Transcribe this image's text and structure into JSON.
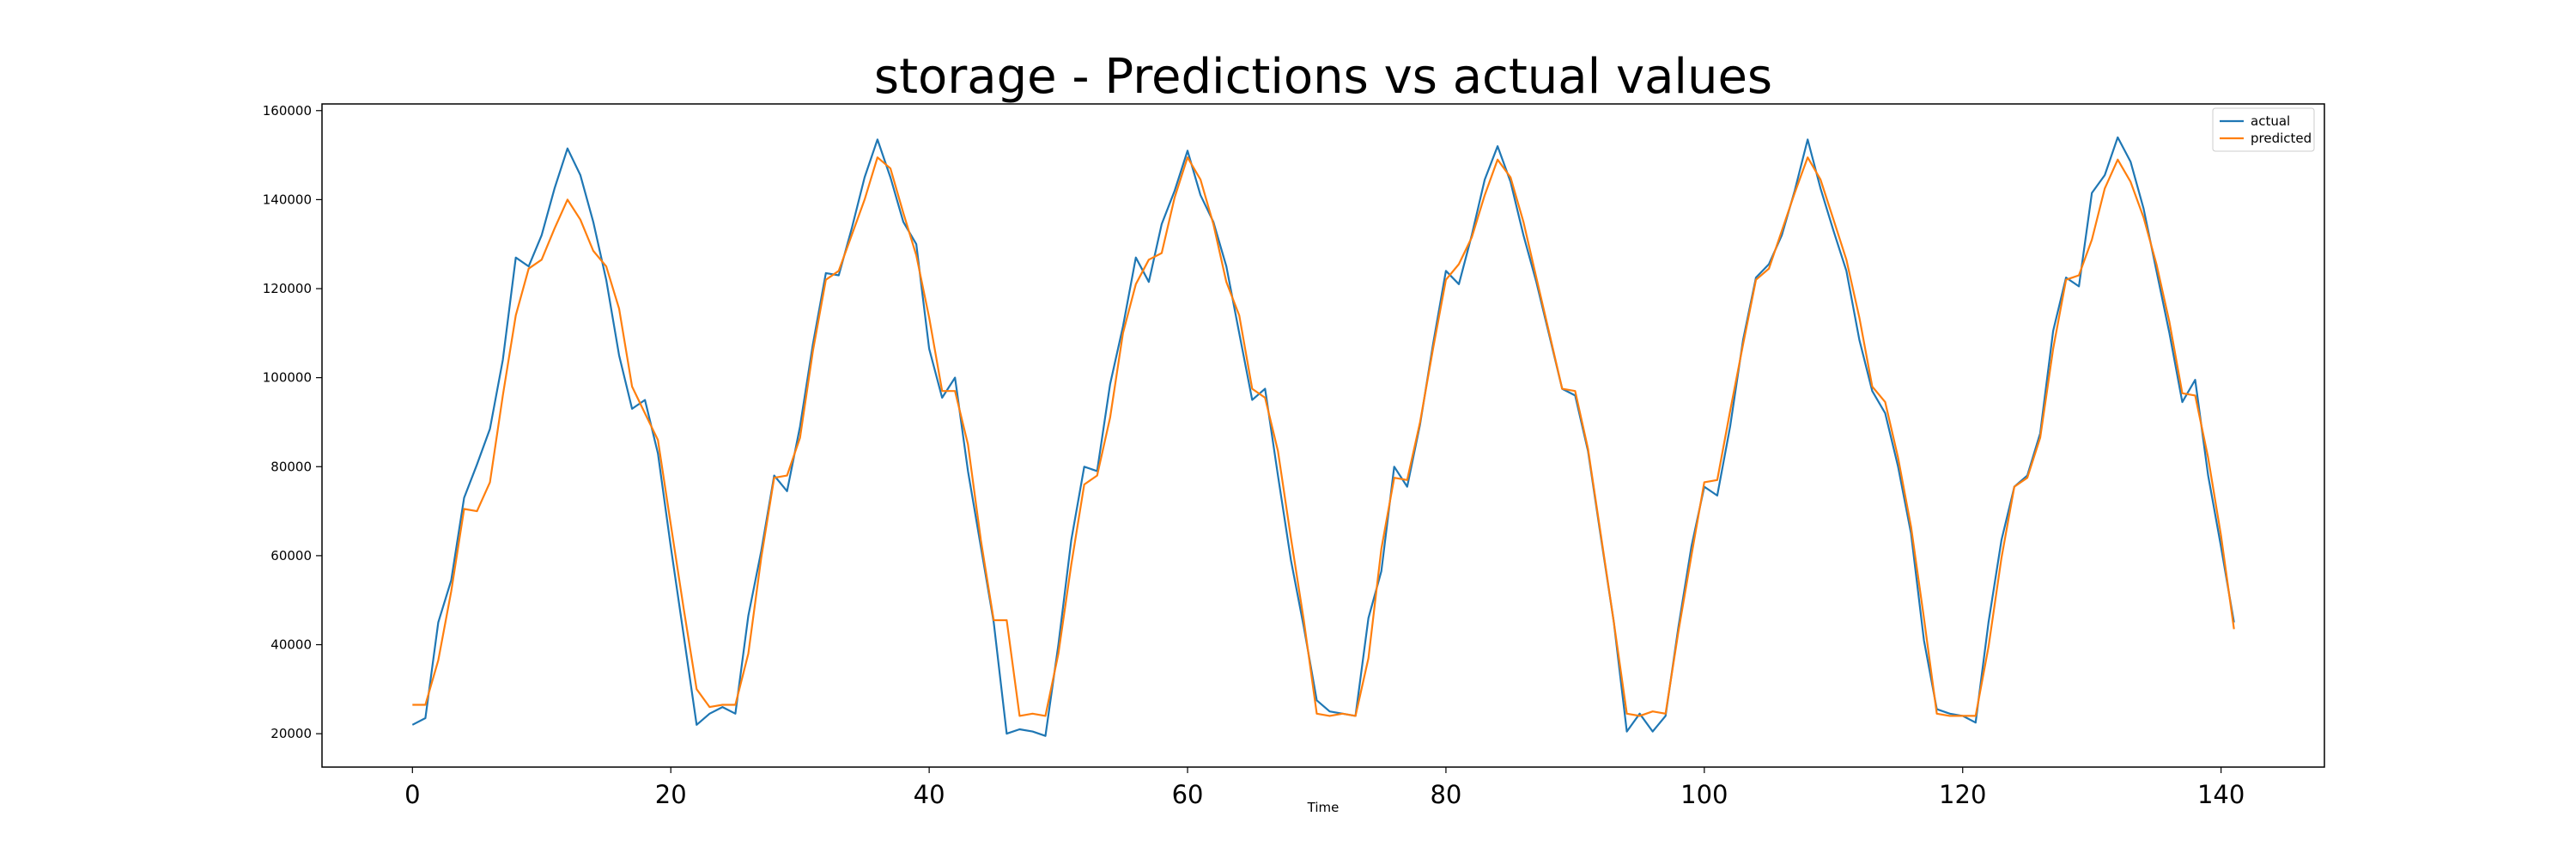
{
  "chart_data": {
    "type": "line",
    "title": "storage - Predictions vs actual values",
    "xlabel": "Time",
    "ylabel": "",
    "xlim": [
      -7,
      148
    ],
    "ylim": [
      12500,
      161500
    ],
    "xticks": [
      0,
      20,
      40,
      60,
      80,
      100,
      120,
      140
    ],
    "yticks": [
      20000,
      40000,
      60000,
      80000,
      100000,
      120000,
      140000,
      160000
    ],
    "grid": false,
    "legend_position": "top-right",
    "series": [
      {
        "name": "actual",
        "color": "#1f77b4",
        "x_start": 0,
        "values": [
          22000,
          23500,
          45000,
          54500,
          73000,
          80500,
          88500,
          104000,
          127000,
          125000,
          132000,
          142500,
          151500,
          145500,
          135000,
          122000,
          105000,
          93000,
          95000,
          83000,
          62000,
          42000,
          22000,
          24500,
          26000,
          24500,
          46500,
          61000,
          78000,
          74500,
          89000,
          107500,
          123500,
          123000,
          133500,
          145000,
          153500,
          145000,
          135000,
          130000,
          106500,
          95500,
          100000,
          79000,
          62000,
          45000,
          20000,
          21000,
          20500,
          19500,
          40000,
          63500,
          80000,
          79000,
          98500,
          111500,
          127000,
          121500,
          134500,
          142000,
          151000,
          141000,
          135000,
          125000,
          110000,
          95000,
          97500,
          78000,
          59000,
          44000,
          27500,
          25000,
          24500,
          24000,
          46000,
          56500,
          80000,
          75500,
          89500,
          107500,
          124000,
          121000,
          132000,
          144500,
          152000,
          144000,
          132000,
          121500,
          109500,
          97500,
          96000,
          83500,
          64000,
          45000,
          20500,
          24500,
          20500,
          24000,
          44000,
          62000,
          75500,
          73500,
          89000,
          108500,
          122500,
          125500,
          132000,
          142000,
          153500,
          142500,
          133000,
          124000,
          108500,
          97000,
          92000,
          80000,
          65000,
          41000,
          25500,
          24500,
          24000,
          22500,
          45000,
          63500,
          75500,
          78000,
          87500,
          110500,
          122500,
          120500,
          141500,
          145500,
          154000,
          148500,
          138000,
          124000,
          110000,
          94500,
          99500,
          78000,
          62000,
          45000
        ]
      },
      {
        "name": "predicted",
        "color": "#ff7f0e",
        "x_start": 0,
        "values": [
          26500,
          26500,
          36500,
          52000,
          70500,
          70000,
          76500,
          96000,
          114000,
          124500,
          126500,
          133500,
          140000,
          135500,
          128500,
          125000,
          115500,
          98000,
          92000,
          86000,
          67000,
          48000,
          30000,
          26000,
          26500,
          26500,
          38000,
          59500,
          77500,
          78000,
          86500,
          106000,
          122000,
          124000,
          132000,
          140000,
          149500,
          147000,
          137000,
          127500,
          113500,
          97000,
          97000,
          85000,
          63500,
          45500,
          45500,
          24000,
          24500,
          24000,
          38000,
          58000,
          76000,
          78000,
          91000,
          110000,
          121000,
          126500,
          128000,
          140500,
          149500,
          144500,
          134500,
          121500,
          114000,
          97500,
          95500,
          83500,
          64000,
          45500,
          24500,
          24000,
          24500,
          24000,
          37000,
          61500,
          77500,
          77000,
          90000,
          106500,
          122000,
          125500,
          131500,
          141000,
          149000,
          145000,
          135000,
          122500,
          110000,
          97500,
          97000,
          84000,
          64500,
          45000,
          24500,
          24000,
          25000,
          24500,
          43000,
          60000,
          76500,
          77000,
          92500,
          107500,
          122000,
          124500,
          133000,
          141500,
          149500,
          144500,
          135500,
          126500,
          113500,
          98000,
          94500,
          82000,
          66500,
          46000,
          24500,
          24000,
          24000,
          24000,
          39500,
          59500,
          75500,
          77500,
          86500,
          106500,
          122000,
          123000,
          131000,
          142500,
          149000,
          144000,
          136000,
          125500,
          112500,
          96500,
          96000,
          82000,
          64500,
          43500
        ]
      }
    ]
  }
}
